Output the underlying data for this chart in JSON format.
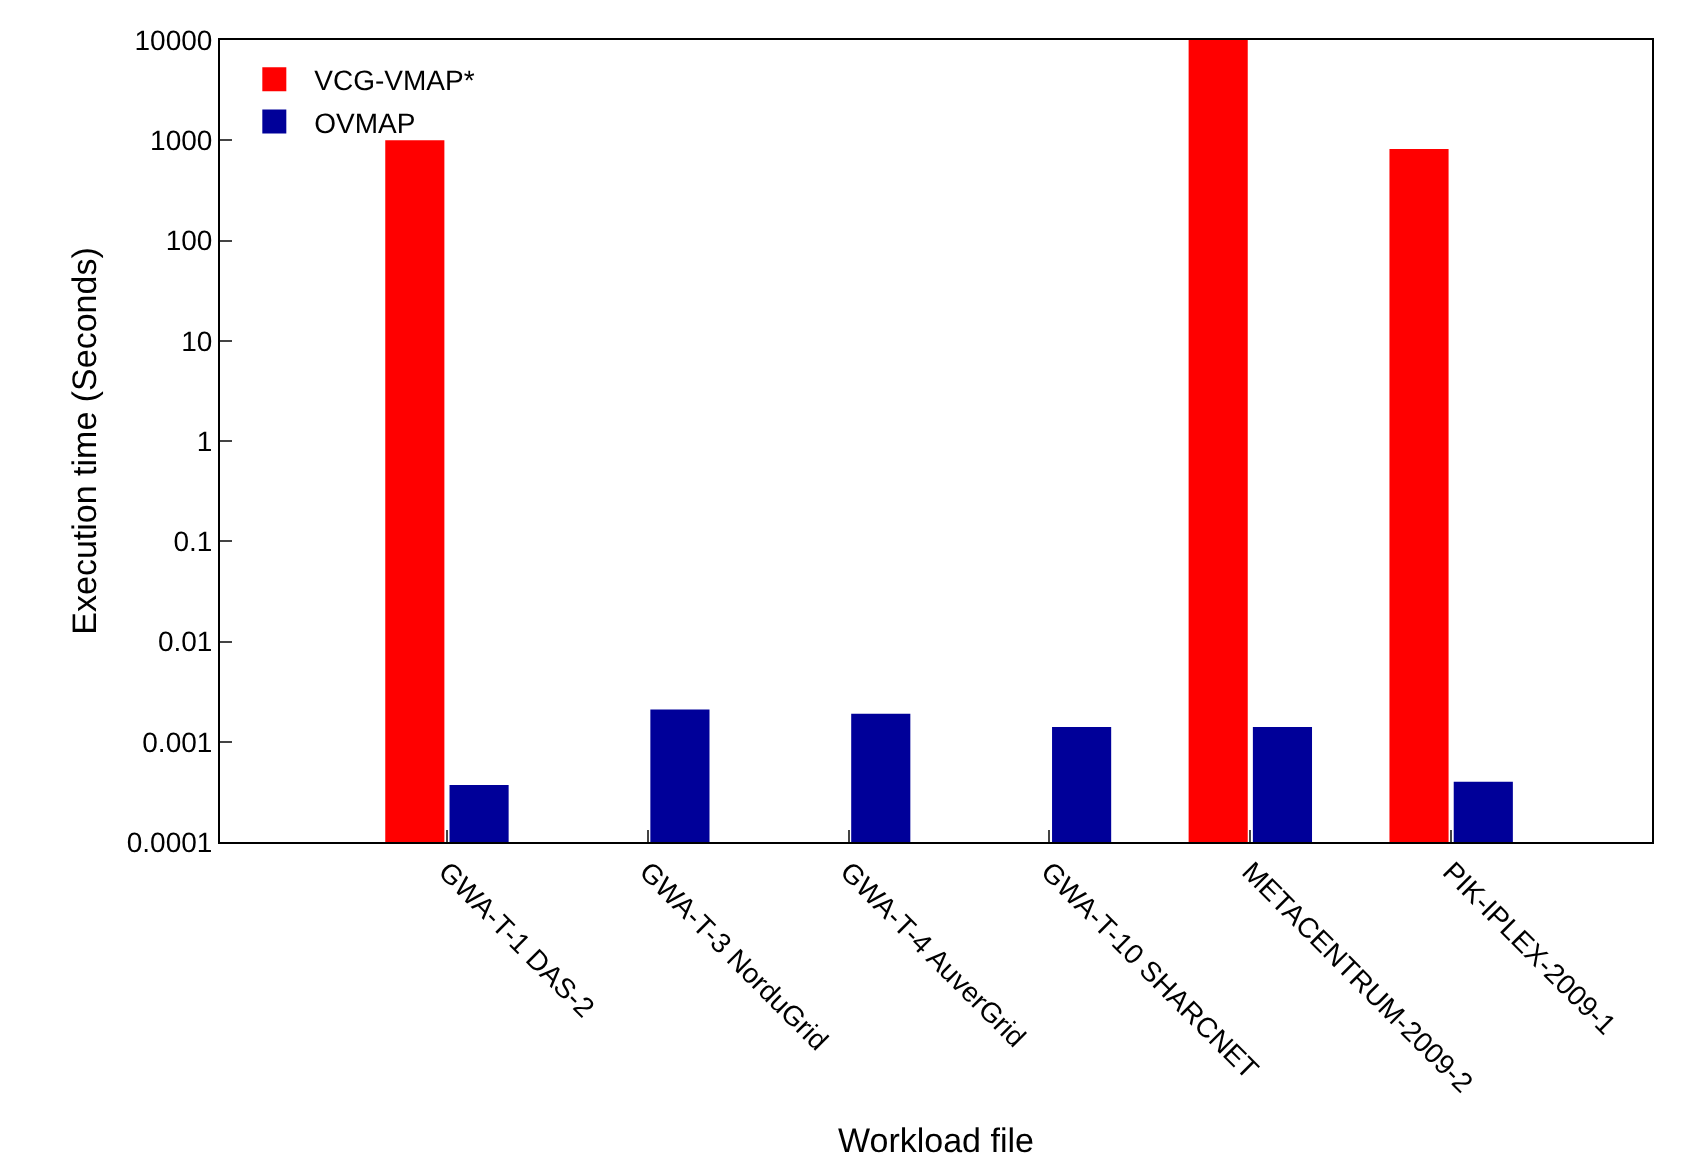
{
  "chart_data": {
    "type": "bar",
    "xlabel": "Workload file",
    "ylabel": "Execution time (Seconds)",
    "categories": [
      "GWA-T-1 DAS-2",
      "GWA-T-3 NorduGrid",
      "GWA-T-4 AuverGrid",
      "GWA-T-10 SHARCNET",
      "METACENTRUM-2009-2",
      "PIK-IPLEX-2009-1"
    ],
    "series": [
      {
        "name": "VCG-VMAP*",
        "color": "#ff0000",
        "values": [
          1000,
          null,
          null,
          null,
          10000,
          820
        ]
      },
      {
        "name": "OVMAP",
        "color": "#000099",
        "values": [
          0.00037,
          0.0021,
          0.0019,
          0.0014,
          0.0014,
          0.0004
        ]
      }
    ],
    "log": true,
    "ylim": [
      0.0001,
      10000
    ],
    "yticks": [
      0.0001,
      0.001,
      0.01,
      0.1,
      1,
      10,
      100,
      1000,
      10000
    ],
    "legend": "top left"
  }
}
